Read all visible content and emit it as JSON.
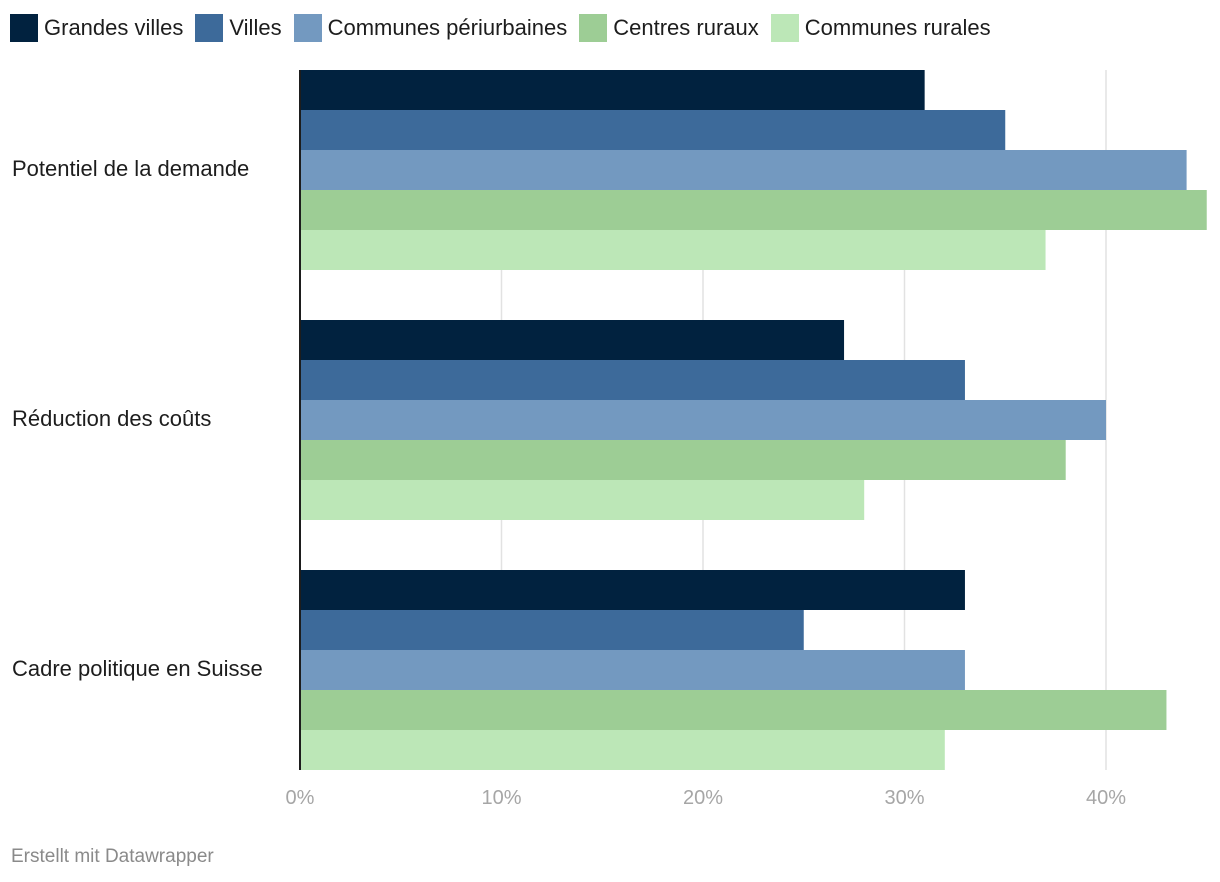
{
  "chart_data": {
    "type": "bar",
    "orientation": "horizontal",
    "categories": [
      "Potentiel de la demande",
      "Réduction des coûts",
      "Cadre politique en Suisse"
    ],
    "series": [
      {
        "name": "Grandes villes",
        "color": "#01223f",
        "values": [
          31,
          27,
          33
        ]
      },
      {
        "name": "Villes",
        "color": "#3d6a9a",
        "values": [
          35,
          33,
          25
        ]
      },
      {
        "name": "Communes périurbaines",
        "color": "#7399c0",
        "values": [
          44,
          40,
          33
        ]
      },
      {
        "name": "Centres ruraux",
        "color": "#9dcd95",
        "values": [
          45,
          38,
          43
        ]
      },
      {
        "name": "Communes rurales",
        "color": "#bce7b7",
        "values": [
          37,
          28,
          32
        ]
      }
    ],
    "xlim": [
      0,
      45
    ],
    "ticks": [
      0,
      10,
      20,
      30,
      40
    ],
    "tick_labels": [
      "0%",
      "10%",
      "20%",
      "30%",
      "40%"
    ],
    "grid": true,
    "legend_position": "top-left",
    "title": "",
    "xlabel": "",
    "ylabel": ""
  },
  "footer": {
    "credit": "Erstellt mit Datawrapper"
  }
}
